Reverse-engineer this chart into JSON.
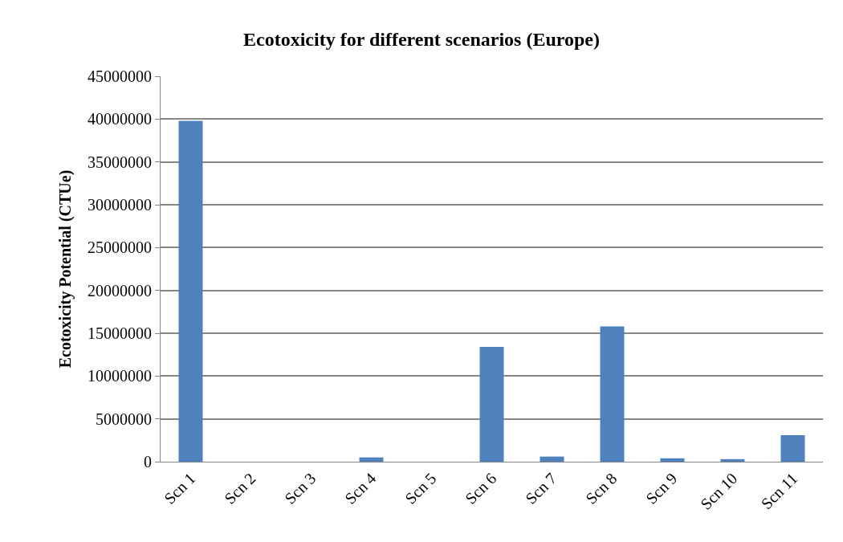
{
  "chart_data": {
    "type": "bar",
    "title": "Ecotoxicity for different scenarios (Europe)",
    "ylabel": "Ecotoxicity Potential (CTUe)",
    "categories": [
      "Scn 1",
      "Scn 2",
      "Scn 3",
      "Scn 4",
      "Scn 5",
      "Scn 6",
      "Scn 7",
      "Scn 8",
      "Scn 9",
      "Scn 10",
      "Scn 11"
    ],
    "values": [
      39800000,
      null,
      null,
      500000,
      null,
      13400000,
      600000,
      15800000,
      400000,
      300000,
      3100000
    ],
    "color": "#4f81bd",
    "ylim": [
      0,
      45000000
    ],
    "yticks": [
      0,
      5000000,
      10000000,
      15000000,
      20000000,
      25000000,
      30000000,
      35000000,
      40000000,
      45000000
    ],
    "grid": "y"
  }
}
